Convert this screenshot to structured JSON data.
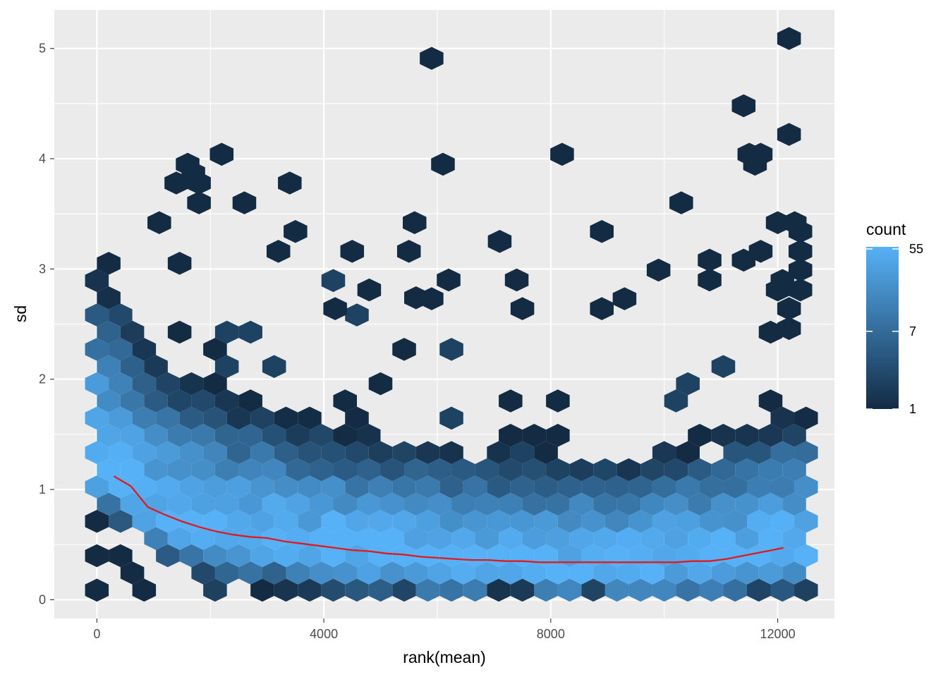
{
  "chart_data": {
    "type": "hexbin",
    "xlabel": "rank(mean)",
    "ylabel": "sd",
    "xlim": [
      -750,
      13000
    ],
    "ylim": [
      -0.17,
      5.35
    ],
    "x_ticks": [
      0,
      4000,
      8000,
      12000
    ],
    "x_tick_labels": [
      "0",
      "4000",
      "8000",
      "12000"
    ],
    "y_ticks": [
      0,
      1,
      2,
      3,
      4,
      5
    ],
    "y_tick_labels": [
      "0",
      "1",
      "2",
      "3",
      "4",
      "5"
    ],
    "grid": true,
    "hex_bins_x": 30,
    "hex_radius_sd": 0.104,
    "legend": {
      "title": "count",
      "position": "right",
      "scale": "log",
      "breaks": [
        55,
        7,
        1
      ],
      "break_labels": [
        "55",
        "7",
        "1"
      ],
      "colors": {
        "low": "#132B43",
        "high": "#56B1F7"
      }
    },
    "colors": {
      "panel": "#ebebeb",
      "grid": "#ffffff",
      "trend": "#e3191c"
    },
    "trend_line": {
      "x": [
        300,
        600,
        900,
        1200,
        1500,
        1800,
        2100,
        2400,
        2700,
        3000,
        3300,
        3600,
        3900,
        4200,
        4500,
        4800,
        5100,
        5400,
        5700,
        6000,
        6300,
        6600,
        6900,
        7200,
        7500,
        7800,
        8100,
        8400,
        8700,
        9000,
        9300,
        9600,
        9900,
        10200,
        10500,
        10800,
        11100,
        11400,
        11700,
        12000,
        12100
      ],
      "y": [
        1.12,
        1.03,
        0.84,
        0.77,
        0.71,
        0.66,
        0.62,
        0.59,
        0.57,
        0.56,
        0.53,
        0.51,
        0.49,
        0.47,
        0.45,
        0.44,
        0.42,
        0.41,
        0.39,
        0.38,
        0.37,
        0.36,
        0.36,
        0.35,
        0.35,
        0.34,
        0.34,
        0.34,
        0.34,
        0.34,
        0.34,
        0.34,
        0.34,
        0.34,
        0.35,
        0.35,
        0.37,
        0.4,
        0.43,
        0.46,
        0.47
      ]
    },
    "outliers": [
      {
        "x": 5900,
        "y": 4.91
      },
      {
        "x": 12200,
        "y": 5.09
      },
      {
        "x": 11400,
        "y": 4.48
      },
      {
        "x": 6100,
        "y": 3.95
      },
      {
        "x": 2200,
        "y": 4.04
      },
      {
        "x": 1600,
        "y": 3.95
      },
      {
        "x": 1700,
        "y": 3.87
      },
      {
        "x": 1800,
        "y": 3.78
      },
      {
        "x": 1400,
        "y": 3.78
      },
      {
        "x": 3400,
        "y": 3.78
      },
      {
        "x": 8200,
        "y": 4.04
      },
      {
        "x": 11600,
        "y": 3.95
      },
      {
        "x": 11700,
        "y": 4.04
      },
      {
        "x": 11500,
        "y": 4.04
      },
      {
        "x": 12200,
        "y": 4.22
      },
      {
        "x": 2600,
        "y": 3.6
      },
      {
        "x": 1800,
        "y": 3.6
      },
      {
        "x": 10300,
        "y": 3.6
      },
      {
        "x": 5600,
        "y": 3.42
      },
      {
        "x": 1100,
        "y": 3.42
      },
      {
        "x": 3500,
        "y": 3.34
      },
      {
        "x": 8900,
        "y": 3.34
      },
      {
        "x": 7100,
        "y": 3.25
      },
      {
        "x": 4500,
        "y": 3.16
      },
      {
        "x": 5500,
        "y": 3.16
      },
      {
        "x": 3200,
        "y": 3.16
      },
      {
        "x": 12000,
        "y": 3.42
      },
      {
        "x": 12300,
        "y": 3.42
      },
      {
        "x": 12400,
        "y": 3.34
      },
      {
        "x": 12400,
        "y": 3.16
      },
      {
        "x": 12400,
        "y": 2.99
      },
      {
        "x": 11700,
        "y": 3.16
      },
      {
        "x": 11400,
        "y": 3.08
      },
      {
        "x": 10800,
        "y": 3.08
      },
      {
        "x": 10800,
        "y": 2.9
      },
      {
        "x": 9900,
        "y": 2.99
      },
      {
        "x": 9300,
        "y": 2.73
      },
      {
        "x": 8900,
        "y": 2.64
      },
      {
        "x": 7400,
        "y": 2.9
      },
      {
        "x": 7500,
        "y": 2.64
      },
      {
        "x": 6200,
        "y": 2.9
      },
      {
        "x": 5900,
        "y": 2.73
      },
      {
        "x": 4800,
        "y": 2.81
      },
      {
        "x": 4200,
        "y": 2.64
      },
      {
        "x": 12000,
        "y": 2.81
      },
      {
        "x": 12400,
        "y": 2.81
      },
      {
        "x": 12200,
        "y": 2.64
      },
      {
        "x": 12200,
        "y": 2.46
      }
    ]
  }
}
